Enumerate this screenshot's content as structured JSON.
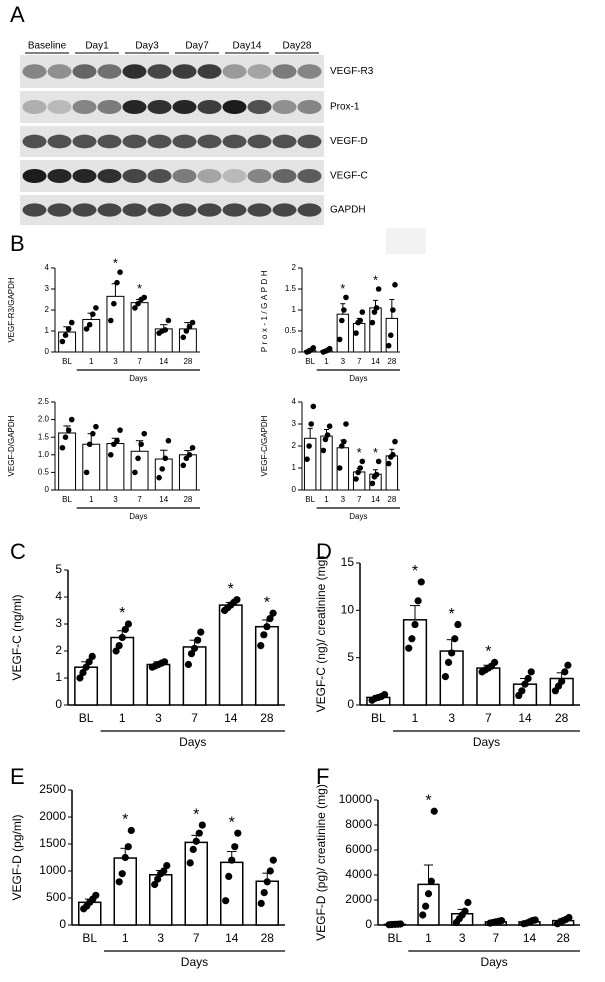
{
  "blot": {
    "panel_label": "A",
    "groups": [
      "Baseline",
      "Day1",
      "Day3",
      "Day7",
      "Day14",
      "Day28"
    ],
    "proteins": [
      "VEGF-R3",
      "Prox-1",
      "VEGF-D",
      "VEGF-C",
      "GAPDH"
    ]
  },
  "chart_data": [
    {
      "type": "bar",
      "panel_label": "B",
      "ylabel": "VEGF-R3/GAPDH",
      "xlabel": "Days",
      "categories": [
        "BL",
        "1",
        "3",
        "7",
        "14",
        "28"
      ],
      "values": [
        0.95,
        1.55,
        2.65,
        2.35,
        1.1,
        1.1
      ],
      "errors": [
        0.25,
        0.3,
        0.6,
        0.15,
        0.2,
        0.3
      ],
      "points": [
        [
          0.5,
          0.8,
          1.1,
          1.4
        ],
        [
          1.1,
          1.3,
          1.8,
          2.1
        ],
        [
          1.5,
          2.3,
          3.3,
          3.8
        ],
        [
          2.1,
          2.3,
          2.5,
          2.6
        ],
        [
          0.9,
          1.0,
          1.05,
          1.5
        ],
        [
          0.7,
          1.0,
          1.2,
          1.4
        ]
      ],
      "significance": [
        null,
        null,
        "*",
        "*",
        null,
        null
      ],
      "ylim": [
        0,
        4
      ],
      "yticks": [
        0,
        1,
        2,
        3,
        4
      ],
      "color": "#000000"
    },
    {
      "type": "bar",
      "ylabel": "Prox-1/GAPDH",
      "xlabel": "Days",
      "categories": [
        "BL",
        "1",
        "3",
        "7",
        "14",
        "28"
      ],
      "values": [
        0.03,
        0.03,
        0.9,
        0.68,
        1.05,
        0.8
      ],
      "errors": [
        0.05,
        0.03,
        0.25,
        0.12,
        0.18,
        0.45
      ],
      "points": [
        [
          0,
          0.02,
          0.05,
          0.1
        ],
        [
          0,
          0.02,
          0.04,
          0.08
        ],
        [
          0.3,
          0.75,
          1.0,
          1.3
        ],
        [
          0.45,
          0.7,
          0.75,
          0.95
        ],
        [
          0.7,
          0.95,
          1.05,
          1.5
        ],
        [
          0.15,
          0.4,
          1.0,
          1.6
        ]
      ],
      "significance": [
        null,
        null,
        "*",
        null,
        "*",
        null
      ],
      "ylim": [
        0,
        2
      ],
      "yticks": [
        0,
        0.5,
        1,
        1.5,
        2
      ],
      "color": "#000000"
    },
    {
      "type": "bar",
      "ylabel": "VEGF-D/GAPDH",
      "xlabel": "Days",
      "categories": [
        "BL",
        "1",
        "3",
        "7",
        "14",
        "28"
      ],
      "values": [
        1.62,
        1.3,
        1.32,
        1.1,
        0.88,
        1.0
      ],
      "errors": [
        0.2,
        0.3,
        0.15,
        0.3,
        0.25,
        0.12
      ],
      "points": [
        [
          1.2,
          1.5,
          1.7,
          2.0
        ],
        [
          0.5,
          1.3,
          1.6,
          1.8
        ],
        [
          1.0,
          1.3,
          1.4,
          1.7
        ],
        [
          0.5,
          0.9,
          1.3,
          1.6
        ],
        [
          0.35,
          0.6,
          0.9,
          1.4
        ],
        [
          0.7,
          0.9,
          1.0,
          1.2
        ]
      ],
      "ylim": [
        0,
        2.5
      ],
      "yticks": [
        0,
        0.5,
        {
          "value": 1,
          "label": "1.0"
        },
        1.5,
        {
          "value": 2,
          "label": "2.0"
        },
        2.5
      ],
      "color": "#000000"
    },
    {
      "type": "bar",
      "ylabel": "VEGF-C/GAPDH",
      "xlabel": "Days",
      "categories": [
        "BL",
        "1",
        "3",
        "7",
        "14",
        "28"
      ],
      "values": [
        2.35,
        2.45,
        1.92,
        0.82,
        0.72,
        1.55
      ],
      "errors": [
        0.45,
        0.3,
        0.35,
        0.15,
        0.2,
        0.3
      ],
      "points": [
        [
          1.4,
          2.0,
          3.0,
          3.8
        ],
        [
          1.8,
          2.3,
          2.5,
          2.9
        ],
        [
          1.0,
          2.0,
          2.2,
          3.0
        ],
        [
          0.5,
          0.8,
          1.0,
          1.3
        ],
        [
          0.3,
          0.6,
          0.7,
          1.3
        ],
        [
          1.2,
          1.5,
          1.6,
          2.2
        ]
      ],
      "significance": [
        null,
        null,
        null,
        "*",
        "*",
        null
      ],
      "ylim": [
        0,
        4
      ],
      "yticks": [
        0,
        1,
        2,
        3,
        4
      ],
      "color": "#000000"
    },
    {
      "type": "bar",
      "panel_label": "C",
      "ylabel": "VEGF-C (ng/ml)",
      "xlabel": "Days",
      "categories": [
        "BL",
        "1",
        "3",
        "7",
        "14",
        "28"
      ],
      "values": [
        1.4,
        2.5,
        1.5,
        2.15,
        3.7,
        2.9
      ],
      "errors": [
        0.2,
        0.25,
        0.1,
        0.25,
        0.1,
        0.25
      ],
      "points": [
        [
          1.0,
          1.2,
          1.4,
          1.6,
          1.8
        ],
        [
          2.0,
          2.2,
          2.5,
          2.8,
          3.0
        ],
        [
          1.4,
          1.45,
          1.5,
          1.55,
          1.6
        ],
        [
          1.5,
          1.9,
          2.1,
          2.4,
          2.7
        ],
        [
          3.5,
          3.6,
          3.7,
          3.8,
          3.9
        ],
        [
          2.2,
          2.6,
          2.9,
          3.2,
          3.4
        ]
      ],
      "significance": [
        null,
        "*",
        null,
        null,
        "*",
        "*"
      ],
      "ylim": [
        0,
        5
      ],
      "yticks": [
        0,
        1,
        2,
        3,
        4,
        5
      ],
      "color": "#000000"
    },
    {
      "type": "bar",
      "panel_label": "D",
      "ylabel": "VEGF-C (ng)/ creatinine (mg)",
      "xlabel": "Days",
      "categories": [
        "BL",
        "1",
        "3",
        "7",
        "14",
        "28"
      ],
      "values": [
        0.8,
        9.0,
        5.7,
        3.9,
        2.2,
        2.8
      ],
      "errors": [
        0.2,
        1.5,
        1.2,
        0.3,
        0.6,
        0.6
      ],
      "points": [
        [
          0.5,
          0.7,
          0.8,
          0.9,
          1.1
        ],
        [
          6.0,
          7.0,
          8.5,
          11.0,
          13.0
        ],
        [
          3.0,
          4.5,
          5.5,
          7.0,
          8.5
        ],
        [
          3.5,
          3.7,
          3.9,
          4.1,
          4.5
        ],
        [
          1.0,
          1.5,
          2.2,
          2.8,
          3.5
        ],
        [
          1.5,
          2.0,
          2.5,
          3.5,
          4.2
        ]
      ],
      "significance": [
        null,
        "*",
        "*",
        "*",
        null,
        null
      ],
      "ylim": [
        0,
        15
      ],
      "yticks": [
        0,
        5,
        10,
        15
      ],
      "color": "#000000"
    },
    {
      "type": "bar",
      "panel_label": "E",
      "ylabel": "VEGF-D (pg/ml)",
      "xlabel": "Days",
      "categories": [
        "BL",
        "1",
        "3",
        "7",
        "14",
        "28"
      ],
      "values": [
        420,
        1240,
        930,
        1530,
        1160,
        810
      ],
      "errors": [
        60,
        180,
        80,
        130,
        200,
        150
      ],
      "points": [
        [
          300,
          350,
          420,
          480,
          550
        ],
        [
          800,
          950,
          1250,
          1450,
          1750
        ],
        [
          750,
          850,
          950,
          1000,
          1100
        ],
        [
          1150,
          1400,
          1550,
          1700,
          1850
        ],
        [
          450,
          900,
          1200,
          1450,
          1700
        ],
        [
          400,
          600,
          800,
          1000,
          1200
        ]
      ],
      "significance": [
        null,
        "*",
        null,
        "*",
        "*",
        null
      ],
      "ylim": [
        0,
        2500
      ],
      "yticks": [
        0,
        500,
        1000,
        1500,
        2000,
        2500
      ],
      "color": "#000000"
    },
    {
      "type": "bar",
      "panel_label": "F",
      "ylabel": "VEGF-D (pg)/ creatinine (mg)",
      "xlabel": "Days",
      "categories": [
        "BL",
        "1",
        "3",
        "7",
        "14",
        "28"
      ],
      "values": [
        50,
        3250,
        900,
        250,
        250,
        350
      ],
      "errors": [
        20,
        1550,
        350,
        80,
        100,
        150
      ],
      "points": [
        [
          20,
          40,
          50,
          60,
          80
        ],
        [
          800,
          1500,
          2500,
          3500,
          9100
        ],
        [
          200,
          500,
          800,
          1100,
          1800
        ],
        [
          150,
          200,
          250,
          300,
          350
        ],
        [
          100,
          150,
          250,
          350,
          400
        ],
        [
          100,
          250,
          350,
          450,
          600
        ]
      ],
      "significance": [
        null,
        "*",
        null,
        null,
        null,
        null
      ],
      "ylim": [
        0,
        10000
      ],
      "yticks": [
        0,
        2000,
        4000,
        6000,
        8000,
        10000
      ],
      "color": "#000000"
    }
  ]
}
